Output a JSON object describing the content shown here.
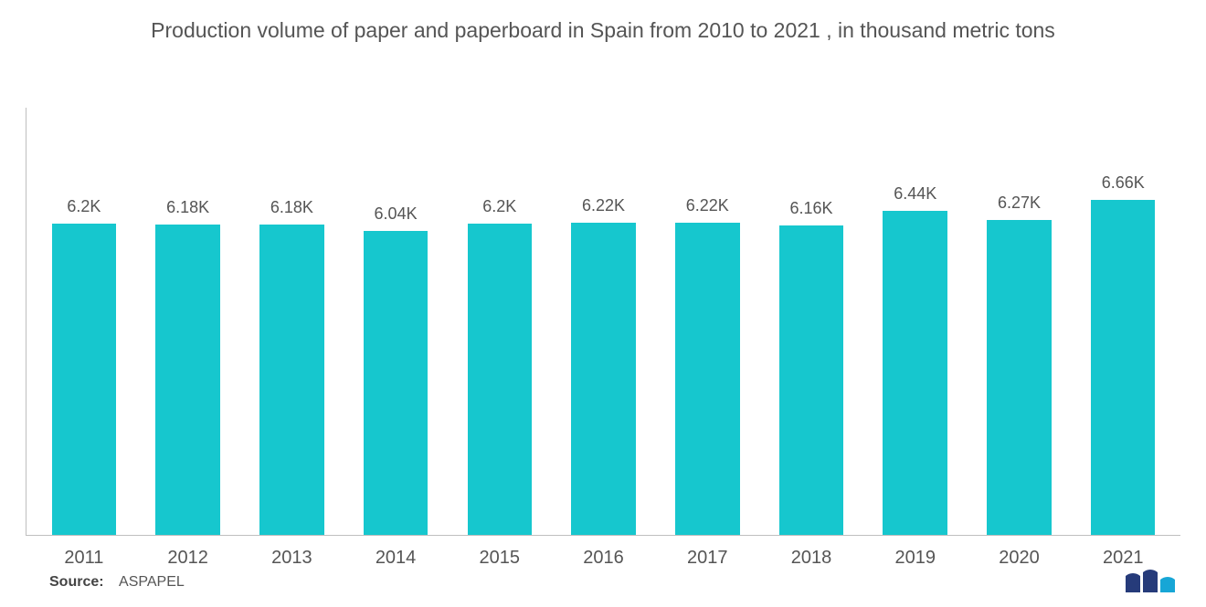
{
  "title": "Production volume of paper and paperboard in Spain from 2010 to 2021 , in thousand metric tons",
  "chart": {
    "type": "bar",
    "bar_color": "#16c7ce",
    "bar_width_pct": 62,
    "axis_line_color": "#bfbfbf",
    "background_color": "#ffffff",
    "title_fontsize": 23,
    "label_fontsize": 18,
    "xaxis_fontsize": 20,
    "text_color": "#555555",
    "ylim": [
      0,
      8.5
    ],
    "categories": [
      "2011",
      "2012",
      "2013",
      "2014",
      "2015",
      "2016",
      "2017",
      "2018",
      "2019",
      "2020",
      "2021"
    ],
    "values": [
      6.2,
      6.18,
      6.18,
      6.04,
      6.2,
      6.22,
      6.22,
      6.16,
      6.44,
      6.27,
      6.66
    ],
    "value_labels": [
      "6.2K",
      "6.18K",
      "6.18K",
      "6.04K",
      "6.2K",
      "6.22K",
      "6.22K",
      "6.16K",
      "6.44K",
      "6.27K",
      "6.66K"
    ]
  },
  "source": {
    "label": "Source:",
    "value": "ASPAPEL"
  },
  "logo": {
    "bar1_color": "#263b7a",
    "bar2_color": "#263b7a",
    "bar3_color": "#17a6d6"
  }
}
